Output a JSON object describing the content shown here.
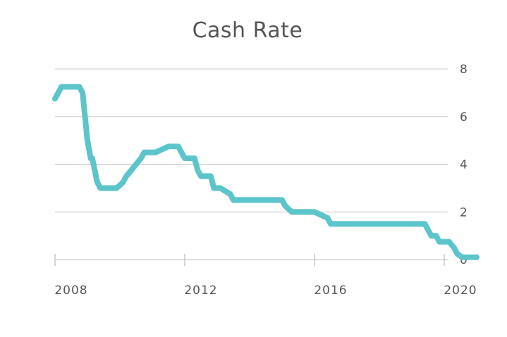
{
  "chart_data": {
    "type": "line",
    "title": "Cash Rate",
    "xlabel": "",
    "ylabel": "",
    "xlim": [
      2008.0,
      2021.5
    ],
    "ylim": [
      0,
      8
    ],
    "y_ticks": [
      0,
      2,
      4,
      6,
      8
    ],
    "x_ticks": [
      2008,
      2012,
      2016,
      2020
    ],
    "y_axis_position": "right",
    "grid": "horizontal",
    "legend": "none",
    "series": [
      {
        "color": "#5BC5CB",
        "x": [
          2008.0,
          2008.1,
          2008.2,
          2008.75,
          2008.85,
          2009.0,
          2009.1,
          2009.15,
          2009.3,
          2009.4,
          2009.9,
          2010.1,
          2010.2,
          2010.35,
          2010.5,
          2010.65,
          2010.75,
          2011.1,
          2011.5,
          2011.8,
          2011.9,
          2012.0,
          2012.3,
          2012.4,
          2012.5,
          2012.8,
          2012.9,
          2013.1,
          2013.4,
          2013.5,
          2013.6,
          2013.75,
          2013.85,
          2014.5,
          2015.0,
          2015.1,
          2015.3,
          2015.4,
          2016.0,
          2016.4,
          2016.5,
          2016.7,
          2016.8,
          2017.5,
          2019.4,
          2019.5,
          2019.6,
          2019.75,
          2019.85,
          2020.15,
          2020.3,
          2020.4,
          2020.55,
          2020.6,
          2021.0
        ],
        "y": [
          6.75,
          7.0,
          7.25,
          7.25,
          7.0,
          5.0,
          4.25,
          4.25,
          3.25,
          3.0,
          3.0,
          3.25,
          3.5,
          3.75,
          4.0,
          4.25,
          4.5,
          4.5,
          4.75,
          4.75,
          4.5,
          4.25,
          4.25,
          3.75,
          3.5,
          3.5,
          3.0,
          3.0,
          2.75,
          2.5,
          2.5,
          2.5,
          2.5,
          2.5,
          2.5,
          2.25,
          2.0,
          2.0,
          2.0,
          1.75,
          1.5,
          1.5,
          1.5,
          1.5,
          1.5,
          1.25,
          1.0,
          1.0,
          0.75,
          0.75,
          0.5,
          0.25,
          0.1,
          0.1,
          0.1
        ]
      }
    ]
  }
}
